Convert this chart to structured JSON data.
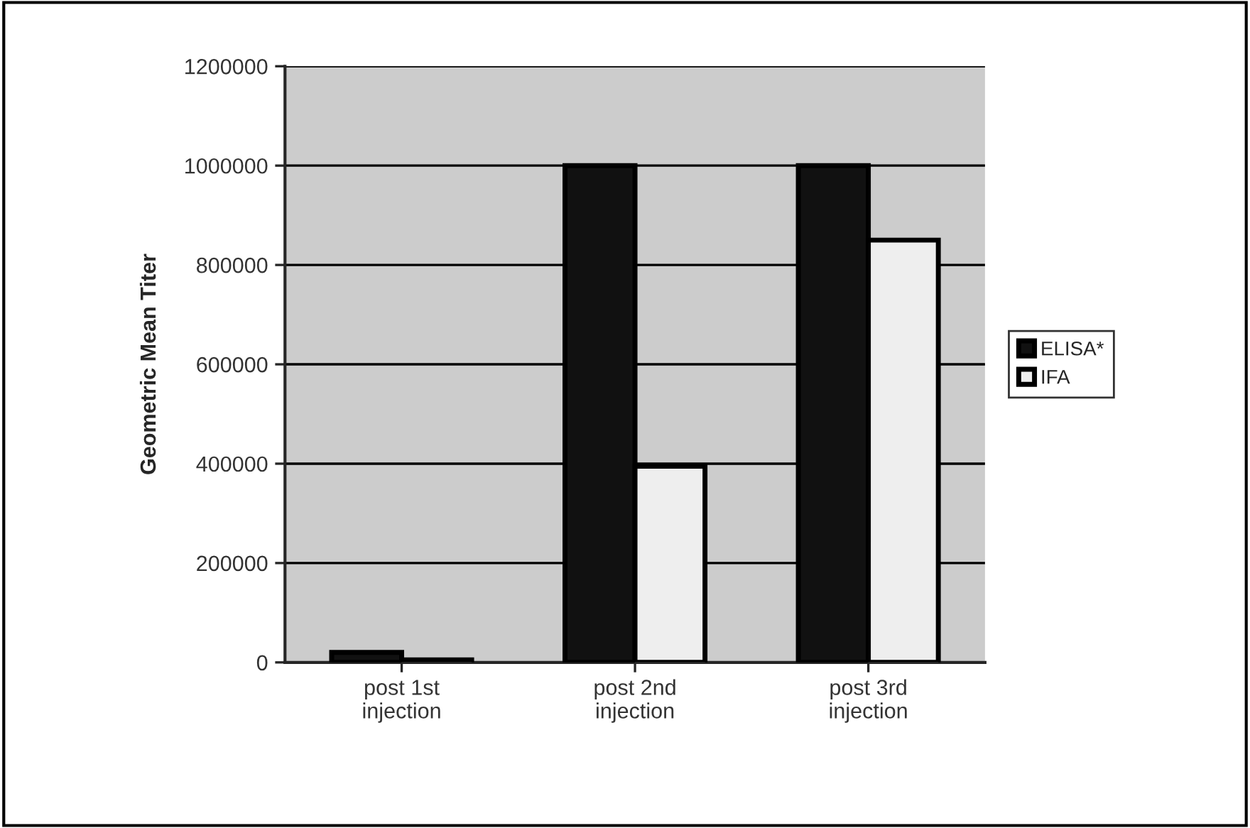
{
  "chart_data": {
    "type": "bar",
    "ylabel": "Geometric Mean Titer",
    "categories": [
      "post 1st\ninjection",
      "post 2nd\ninjection",
      "post 3rd\ninjection"
    ],
    "series": [
      {
        "name": "ELISA*",
        "color": "#111111",
        "values": [
          20000,
          1000000,
          1000000
        ]
      },
      {
        "name": "IFA",
        "color": "#eeeeee",
        "values": [
          5000,
          395000,
          850000
        ]
      }
    ],
    "ylim": [
      0,
      1200000
    ],
    "yticks": [
      0,
      200000,
      400000,
      600000,
      800000,
      1000000,
      1200000
    ],
    "grid": "y",
    "legend": "right"
  }
}
